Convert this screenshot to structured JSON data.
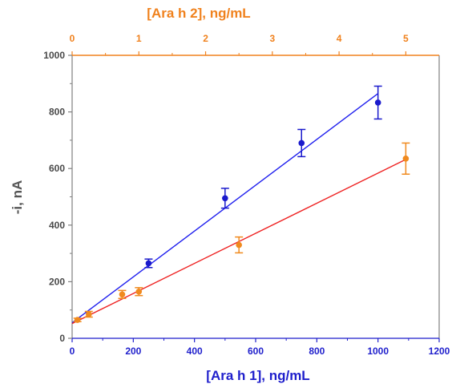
{
  "chart_data": {
    "type": "scatter",
    "ylabel": "-i, nA",
    "ylim": [
      0,
      1000
    ],
    "y_ticks": [
      "0",
      "200",
      "400",
      "600",
      "800",
      "1000"
    ],
    "x_bottom": {
      "label": "[Ara h 1], ng/mL",
      "lim": [
        0,
        1200
      ],
      "ticks": [
        "0",
        "200",
        "400",
        "600",
        "800",
        "1000",
        "1200"
      ],
      "color": "#1f1fcc"
    },
    "x_top": {
      "label": "[Ara h 2], ng/mL",
      "lim": [
        0,
        5.5
      ],
      "ticks": [
        "0",
        "1",
        "2",
        "3",
        "4",
        "5"
      ],
      "color": "#f0821e"
    },
    "grid": false,
    "series": [
      {
        "axis": "bottom",
        "color": "#1f1fee",
        "marker_color": "#1a1acc",
        "points": [
          {
            "x": 250,
            "y": 265,
            "err": 15
          },
          {
            "x": 500,
            "y": 495,
            "err": 35
          },
          {
            "x": 750,
            "y": 690,
            "err": 48
          },
          {
            "x": 1000,
            "y": 833,
            "err": 58
          }
        ],
        "fit": {
          "x": [
            0,
            1000
          ],
          "y": [
            55,
            865
          ]
        }
      },
      {
        "axis": "top",
        "color": "#ee2222",
        "marker_color": "#f08a1e",
        "points": [
          {
            "x": 0.08,
            "y": 65,
            "err": 6
          },
          {
            "x": 0.25,
            "y": 85,
            "err": 10
          },
          {
            "x": 0.75,
            "y": 155,
            "err": 14
          },
          {
            "x": 1.0,
            "y": 165,
            "err": 14
          },
          {
            "x": 2.5,
            "y": 330,
            "err": 28
          },
          {
            "x": 5.0,
            "y": 635,
            "err": 55
          }
        ],
        "fit": {
          "x": [
            0,
            5.0
          ],
          "y": [
            52,
            632
          ]
        }
      }
    ]
  }
}
